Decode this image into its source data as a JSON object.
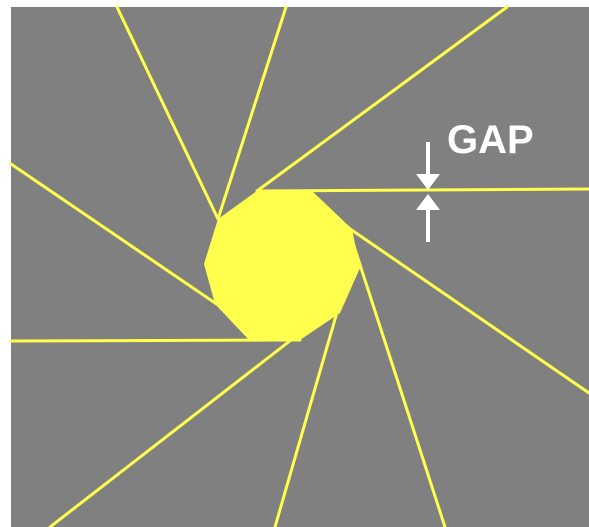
{
  "diagram": {
    "label": "GAP",
    "colors": {
      "background": "#808080",
      "blade_edge": "#ffff4d",
      "aperture": "#ffff4d",
      "label": "#ffffff",
      "arrow": "#ffffff",
      "outer": "#ffffff"
    },
    "blade_count": 8,
    "icons": [
      "down-arrow-icon",
      "up-arrow-icon"
    ]
  }
}
